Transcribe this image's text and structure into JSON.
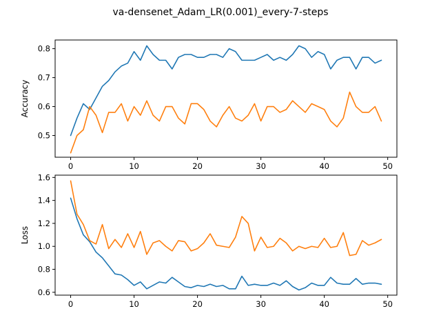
{
  "figure": {
    "title": "va-densenet_Adam_LR(0.001)_every-7-steps"
  },
  "chart_data": [
    {
      "type": "line",
      "title": "",
      "xlabel": "",
      "ylabel": "Accuracy",
      "xlim": [
        -2.45,
        51.45
      ],
      "ylim": [
        0.425,
        0.83
      ],
      "xticks": [
        0,
        10,
        20,
        30,
        40,
        50
      ],
      "yticks": [
        0.5,
        0.6,
        0.7,
        0.8
      ],
      "ytick_labels": [
        "0.5",
        "0.6",
        "0.7",
        "0.8"
      ],
      "grid": false,
      "x": [
        0,
        1,
        2,
        3,
        4,
        5,
        6,
        7,
        8,
        9,
        10,
        11,
        12,
        13,
        14,
        15,
        16,
        17,
        18,
        19,
        20,
        21,
        22,
        23,
        24,
        25,
        26,
        27,
        28,
        29,
        30,
        31,
        32,
        33,
        34,
        35,
        36,
        37,
        38,
        39,
        40,
        41,
        42,
        43,
        44,
        45,
        46,
        47,
        48,
        49
      ],
      "series": [
        {
          "color": "#1f77b4",
          "values": [
            0.5,
            0.56,
            0.61,
            0.59,
            0.63,
            0.67,
            0.69,
            0.72,
            0.74,
            0.75,
            0.79,
            0.76,
            0.81,
            0.78,
            0.76,
            0.76,
            0.73,
            0.77,
            0.78,
            0.78,
            0.77,
            0.77,
            0.78,
            0.78,
            0.77,
            0.8,
            0.79,
            0.76,
            0.76,
            0.76,
            0.77,
            0.78,
            0.76,
            0.77,
            0.76,
            0.78,
            0.81,
            0.8,
            0.77,
            0.79,
            0.78,
            0.73,
            0.76,
            0.77,
            0.77,
            0.73,
            0.77,
            0.77,
            0.75,
            0.76
          ]
        },
        {
          "color": "#ff7f0e",
          "values": [
            0.44,
            0.5,
            0.52,
            0.6,
            0.57,
            0.51,
            0.58,
            0.58,
            0.61,
            0.55,
            0.6,
            0.57,
            0.62,
            0.57,
            0.55,
            0.6,
            0.6,
            0.56,
            0.54,
            0.61,
            0.61,
            0.59,
            0.55,
            0.53,
            0.57,
            0.6,
            0.56,
            0.55,
            0.57,
            0.61,
            0.55,
            0.6,
            0.6,
            0.58,
            0.59,
            0.62,
            0.6,
            0.58,
            0.61,
            0.6,
            0.59,
            0.55,
            0.53,
            0.56,
            0.65,
            0.6,
            0.58,
            0.58,
            0.6,
            0.55
          ]
        }
      ]
    },
    {
      "type": "line",
      "title": "",
      "xlabel": "",
      "ylabel": "Loss",
      "xlim": [
        -2.45,
        51.45
      ],
      "ylim": [
        0.575,
        1.62
      ],
      "xticks": [
        0,
        10,
        20,
        30,
        40,
        50
      ],
      "yticks": [
        0.6,
        0.8,
        1.0,
        1.2,
        1.4,
        1.6
      ],
      "ytick_labels": [
        "0.6",
        "0.8",
        "1.0",
        "1.2",
        "1.4",
        "1.6"
      ],
      "grid": false,
      "x": [
        0,
        1,
        2,
        3,
        4,
        5,
        6,
        7,
        8,
        9,
        10,
        11,
        12,
        13,
        14,
        15,
        16,
        17,
        18,
        19,
        20,
        21,
        22,
        23,
        24,
        25,
        26,
        27,
        28,
        29,
        30,
        31,
        32,
        33,
        34,
        35,
        36,
        37,
        38,
        39,
        40,
        41,
        42,
        43,
        44,
        45,
        46,
        47,
        48,
        49
      ],
      "series": [
        {
          "color": "#1f77b4",
          "values": [
            1.42,
            1.24,
            1.1,
            1.04,
            0.95,
            0.9,
            0.83,
            0.76,
            0.75,
            0.71,
            0.66,
            0.69,
            0.63,
            0.66,
            0.69,
            0.68,
            0.73,
            0.69,
            0.65,
            0.64,
            0.66,
            0.65,
            0.67,
            0.65,
            0.66,
            0.63,
            0.63,
            0.74,
            0.66,
            0.67,
            0.66,
            0.66,
            0.68,
            0.66,
            0.7,
            0.65,
            0.62,
            0.64,
            0.68,
            0.66,
            0.66,
            0.73,
            0.68,
            0.67,
            0.67,
            0.72,
            0.67,
            0.68,
            0.68,
            0.67
          ]
        },
        {
          "color": "#ff7f0e",
          "values": [
            1.57,
            1.28,
            1.19,
            1.05,
            1.02,
            1.19,
            0.98,
            1.06,
            0.99,
            1.11,
            0.99,
            1.13,
            0.93,
            1.03,
            1.05,
            1.0,
            0.96,
            1.05,
            1.04,
            0.96,
            0.98,
            1.03,
            1.11,
            1.01,
            1.0,
            0.99,
            1.08,
            1.26,
            1.2,
            0.96,
            1.08,
            0.99,
            1.0,
            1.07,
            1.03,
            0.96,
            1.0,
            0.98,
            1.0,
            0.99,
            1.07,
            0.99,
            1.0,
            1.12,
            0.92,
            0.93,
            1.05,
            1.01,
            1.03,
            1.06
          ]
        }
      ]
    }
  ]
}
